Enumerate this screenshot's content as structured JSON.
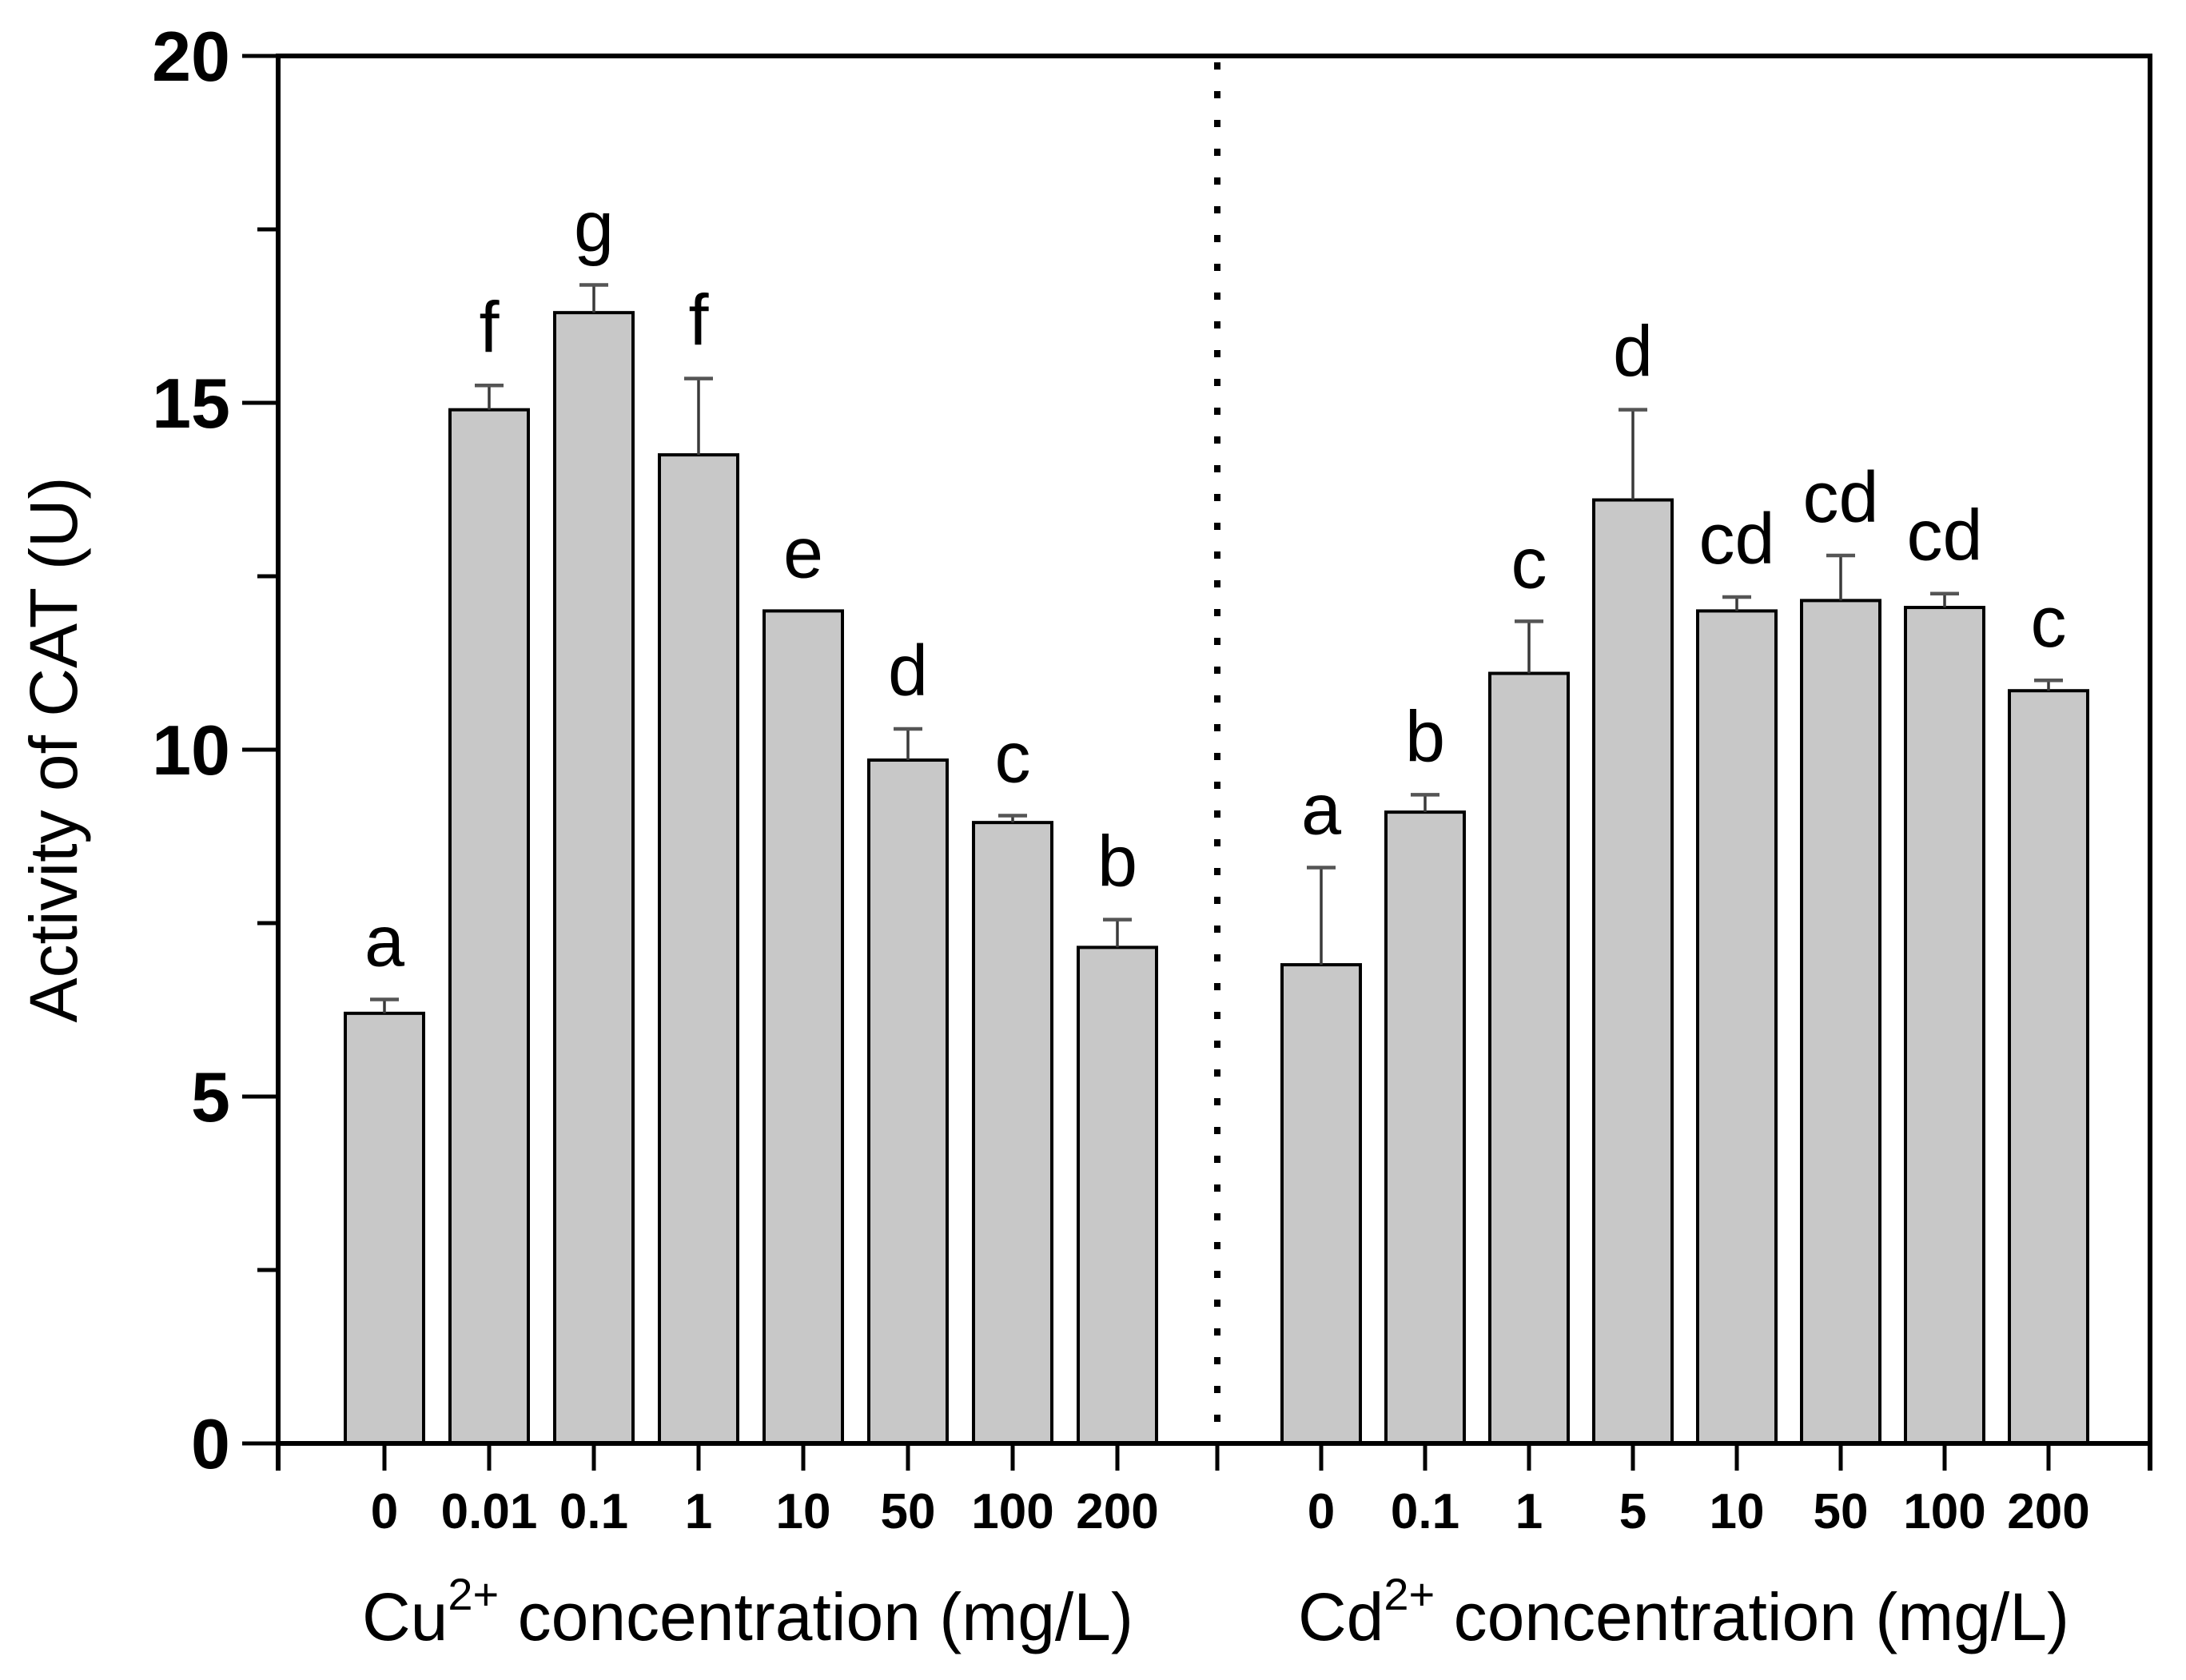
{
  "chart_data": {
    "type": "bar",
    "title": "",
    "ylabel": "Activity of CAT (U)",
    "ylim": [
      0,
      20
    ],
    "yticks": [
      0,
      5,
      10,
      15,
      20
    ],
    "yminorticks": [
      2.5,
      7.5,
      12.5,
      17.5
    ],
    "grid": false,
    "legend": "none",
    "bar_fill_color": "#c8c8c8",
    "bar_border_color": "#000000",
    "background_color": "#ffffff",
    "divider_line_style": "dotted",
    "panels": [
      {
        "name": "Cu",
        "xlabel_element": "Cu",
        "xlabel_superscript": "2+",
        "xlabel_rest": " concentration (mg/L)",
        "categories": [
          "0",
          "0.01",
          "0.1",
          "1",
          "10",
          "50",
          "100",
          "200"
        ],
        "values": [
          6.2,
          14.9,
          16.3,
          14.25,
          12.0,
          9.85,
          8.95,
          7.15
        ],
        "errors": [
          0.2,
          0.35,
          0.4,
          1.1,
          0,
          0.45,
          0.1,
          0.4
        ],
        "letters": [
          "a",
          "f",
          "g",
          "f",
          "e",
          "d",
          "c",
          "b"
        ]
      },
      {
        "name": "Cd",
        "xlabel_element": "Cd",
        "xlabel_superscript": "2+",
        "xlabel_rest": " concentration (mg/L)",
        "categories": [
          "0",
          "0.1",
          "1",
          "5",
          "10",
          "50",
          "100",
          "200"
        ],
        "values": [
          6.9,
          9.1,
          11.1,
          13.6,
          12.0,
          12.15,
          12.05,
          10.85
        ],
        "errors": [
          1.4,
          0.25,
          0.75,
          1.3,
          0.2,
          0.65,
          0.2,
          0.15
        ],
        "letters": [
          "a",
          "b",
          "c",
          "d",
          "cd",
          "cd",
          "cd",
          "c"
        ]
      }
    ]
  }
}
